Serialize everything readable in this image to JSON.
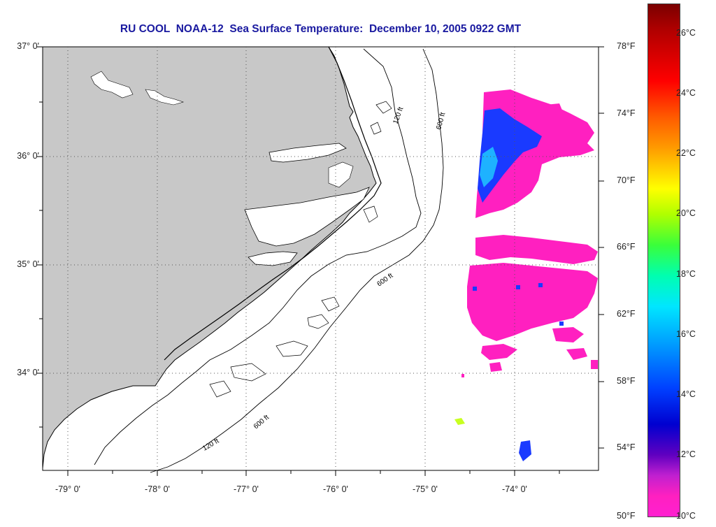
{
  "title": "RU COOL  NOAA-12  Sea Surface Temperature:  December 10, 2005 0922 GMT",
  "latitude_labels": [
    "37° 0'",
    "36° 0'",
    "35° 0'",
    "34° 0'"
  ],
  "longitude_labels": [
    "-79° 0'",
    "-78° 0'",
    "-77° 0'",
    "-76° 0'",
    "-75° 0'",
    "-74° 0'"
  ],
  "contour_labels": [
    "120 ft",
    "600 ft"
  ],
  "colorbar": {
    "fahrenheit_labels": [
      "78°F",
      "74°F",
      "70°F",
      "66°F",
      "62°F",
      "58°F",
      "54°F",
      "50°F"
    ],
    "celsius_labels": [
      "26°C",
      "24°C",
      "22°C",
      "20°C",
      "18°C",
      "16°C",
      "14°C",
      "12°C",
      "10°C"
    ]
  },
  "colors": {
    "title": "#1a1aa0",
    "land": "#c8c8c8",
    "ocean": "#ffffff",
    "cold_water": "#ff20c0",
    "warm_core": "#1a3aff"
  }
}
